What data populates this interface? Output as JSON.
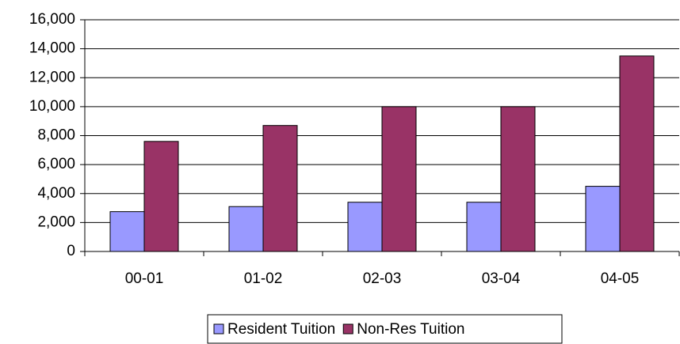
{
  "chart_data": {
    "type": "bar",
    "categories": [
      "00-01",
      "01-02",
      "02-03",
      "03-04",
      "04-05"
    ],
    "series": [
      {
        "name": "Resident Tuition",
        "color": "#9999ff",
        "values": [
          2750,
          3100,
          3400,
          3400,
          4500
        ]
      },
      {
        "name": "Non-Res Tuition",
        "color": "#993366",
        "values": [
          7600,
          8700,
          10000,
          10000,
          13500
        ]
      }
    ],
    "ylim": [
      0,
      16000
    ],
    "yticks": [
      0,
      {
        "value": 2000,
        "label": "2,000"
      },
      {
        "value": 4000,
        "label": "4,000"
      },
      {
        "value": 6000,
        "label": "6,000"
      },
      {
        "value": 8000,
        "label": "8,000"
      },
      {
        "value": 10000,
        "label": "10,000"
      },
      {
        "value": 12000,
        "label": "12,000"
      },
      {
        "value": 14000,
        "label": "14,000"
      },
      {
        "value": 16000,
        "label": "16,000"
      }
    ],
    "grid": true,
    "legend": "bottom"
  }
}
